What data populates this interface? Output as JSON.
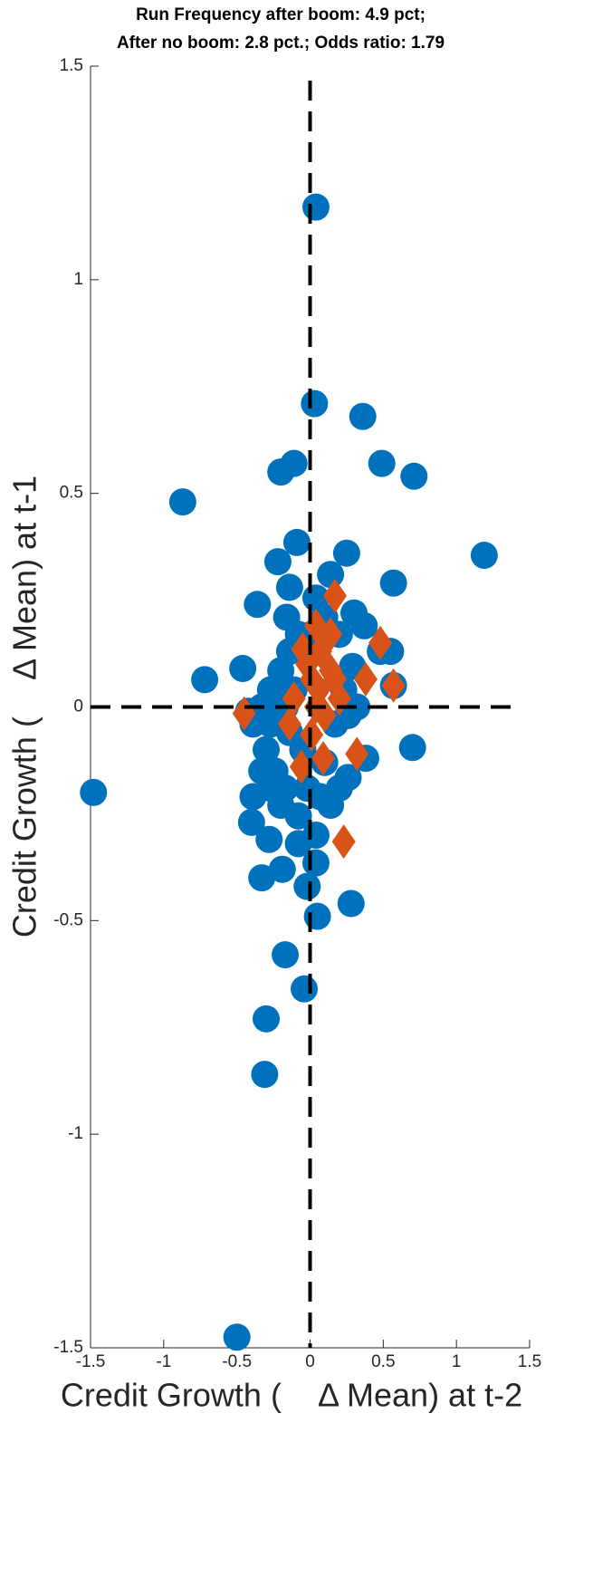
{
  "chart_data": {
    "type": "scatter",
    "title": [
      "Run Frequency after boom: 4.9 pct;",
      "After no boom: 2.8 pct.; Odds ratio: 1.79"
    ],
    "xlabel": "Credit Growth (    Δ Mean) at t-2",
    "ylabel": "Credit Growth (    Δ Mean) at t-1",
    "xlim": [
      -1.5,
      1.5
    ],
    "ylim": [
      -1.5,
      1.5
    ],
    "xticks": [
      -1.5,
      -1,
      -0.5,
      0,
      0.5,
      1,
      1.5
    ],
    "yticks": [
      -1.5,
      -1,
      -0.5,
      0,
      0.5,
      1,
      1.5
    ],
    "vline": 0,
    "hline": 0,
    "series": [
      {
        "color": "#0072BD",
        "marker": "circle",
        "x": [
          0.04,
          0.03,
          0.36,
          0.49,
          0.71,
          -0.11,
          -0.2,
          -0.87,
          1.19,
          -0.09,
          0.25,
          -0.22,
          0.57,
          0.14,
          -0.14,
          -0.36,
          0.04,
          0.3,
          0.37,
          -0.16,
          0.55,
          -0.72,
          -0.46,
          0.7,
          -1.48,
          0.38,
          0.26,
          -0.39,
          -0.4,
          -0.28,
          -0.33,
          -0.19,
          -0.02,
          0.04,
          0.05,
          0.28,
          -0.17,
          -0.04,
          -0.3,
          -0.31,
          -0.5,
          -0.27,
          -0.2,
          -0.14,
          -0.08,
          -0.11,
          -0.27,
          -0.3,
          -0.24,
          -0.17,
          -0.2,
          -0.08,
          -0.02,
          0.1,
          0.17,
          0.23,
          0.29,
          0.26,
          0.2,
          0.14,
          0.04,
          -0.08,
          -0.14,
          -0.05,
          -0.33,
          -0.39,
          -0.27,
          -0.33,
          0.01,
          0.1,
          0.2,
          -0.17,
          0.07,
          0.32,
          0.48,
          0.57,
          -0.42
        ],
        "values": [
          1.17,
          0.71,
          0.68,
          0.57,
          0.54,
          0.57,
          0.55,
          0.48,
          0.355,
          0.385,
          0.36,
          0.34,
          0.29,
          0.31,
          0.28,
          0.24,
          0.255,
          0.22,
          0.19,
          0.21,
          0.13,
          0.064,
          0.09,
          -0.095,
          -0.2,
          -0.12,
          -0.165,
          -0.21,
          -0.27,
          -0.31,
          -0.4,
          -0.38,
          -0.42,
          -0.365,
          -0.49,
          -0.46,
          -0.58,
          -0.66,
          -0.73,
          -0.86,
          -1.475,
          0.04,
          0.085,
          0.13,
          0.17,
          0.04,
          -0.04,
          -0.1,
          -0.15,
          -0.19,
          -0.23,
          -0.255,
          -0.19,
          -0.13,
          -0.04,
          0.04,
          0.095,
          -0.02,
          -0.19,
          -0.23,
          -0.3,
          -0.32,
          -0.06,
          -0.1,
          0,
          -0.04,
          -0.19,
          -0.15,
          0.17,
          0.21,
          0.17,
          0,
          -0.21,
          0,
          0.13,
          0.05,
          -0.01
        ]
      },
      {
        "color": "#D95319",
        "marker": "diamond",
        "x": [
          0.17,
          0.48,
          0.57,
          0.38,
          0.32,
          0.23,
          -0.45,
          -0.06,
          0.09,
          -0.05,
          0.14,
          0.04,
          0.07,
          0.01,
          0.17,
          -0.11,
          -0.14,
          0.04,
          0.01,
          0.1,
          0.2,
          0.14,
          0.06,
          -0.02
        ],
        "values": [
          0.26,
          0.15,
          0.05,
          0.065,
          -0.11,
          -0.315,
          -0.015,
          -0.14,
          -0.12,
          0.135,
          0.17,
          0.19,
          0.13,
          0.065,
          0.065,
          0.02,
          -0.04,
          0,
          -0.065,
          -0.02,
          0.02,
          0.085,
          0.04,
          0.1
        ]
      }
    ]
  }
}
